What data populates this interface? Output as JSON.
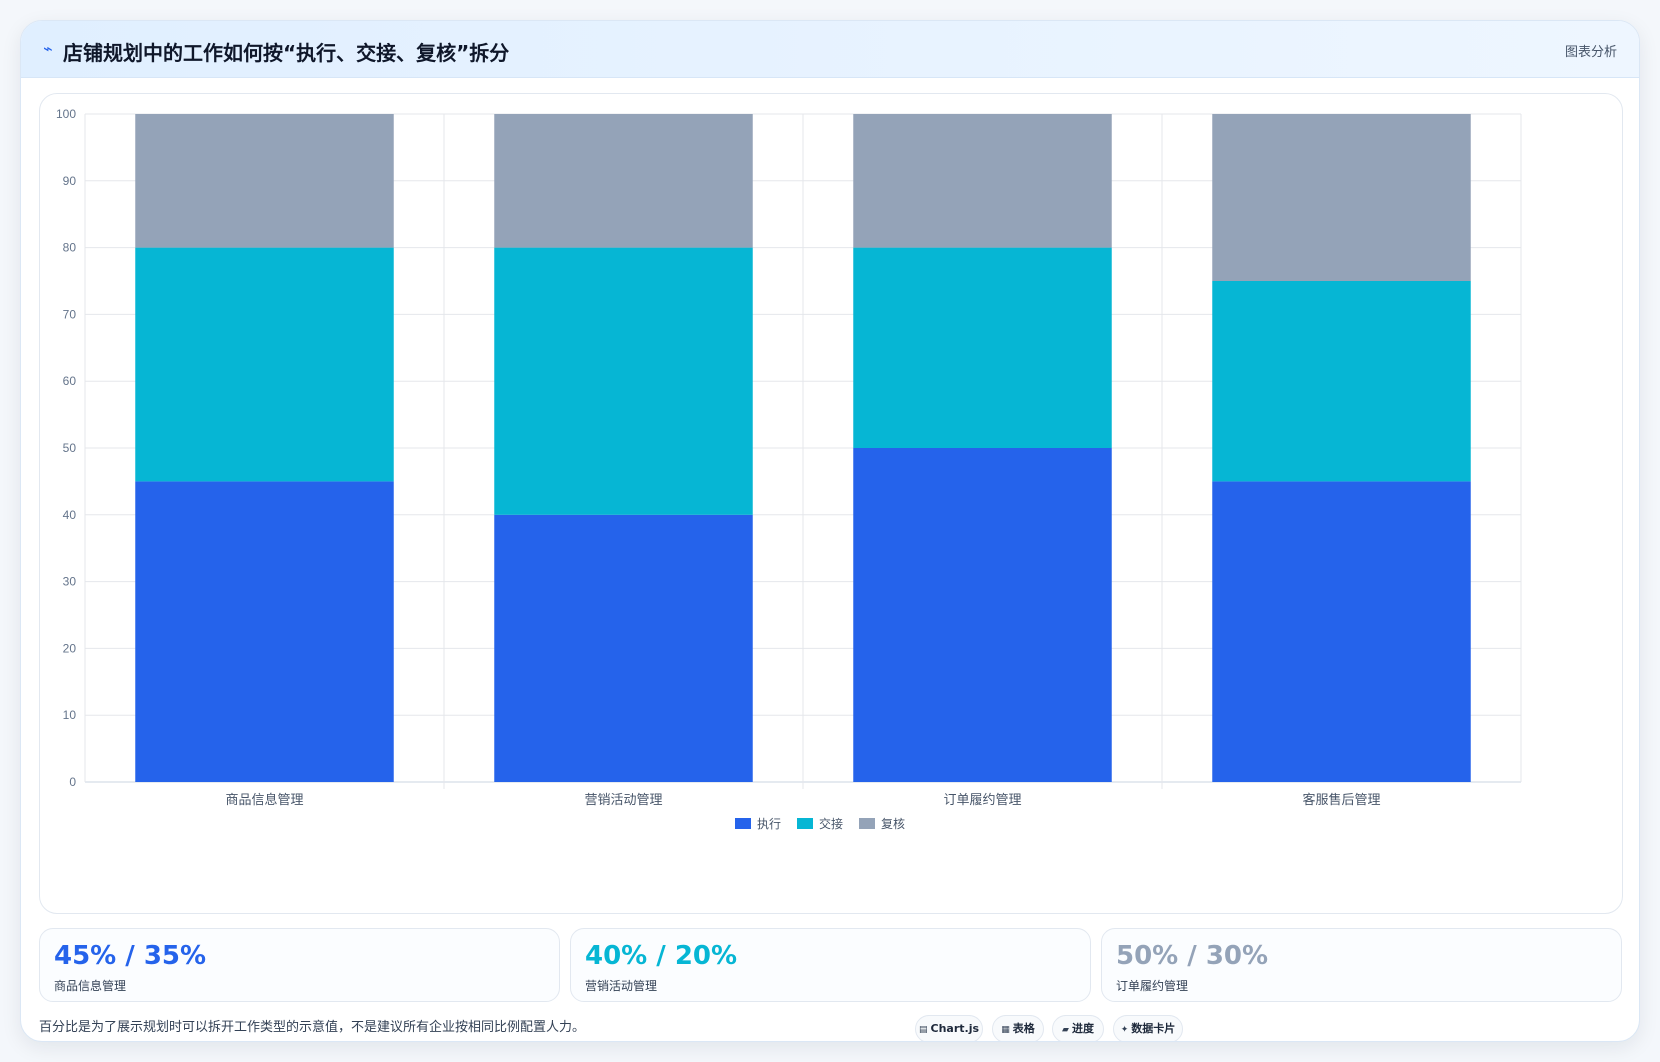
{
  "header": {
    "icon": "chart-line-icon",
    "title": "店铺规划中的工作如何按“执行、交接、复核”拆分",
    "right_label": "图表分析"
  },
  "colors": {
    "exec": "#2563eb",
    "handoff": "#06b6d4",
    "review": "#94a3b8"
  },
  "chart_data": {
    "type": "bar",
    "stacked": true,
    "categories": [
      "商品信息管理",
      "营销活动管理",
      "订单履约管理",
      "客服售后管理"
    ],
    "series": [
      {
        "name": "执行",
        "values": [
          45,
          40,
          50,
          45
        ],
        "color": "#2563eb"
      },
      {
        "name": "交接",
        "values": [
          35,
          40,
          30,
          30
        ],
        "color": "#06b6d4"
      },
      {
        "name": "复核",
        "values": [
          20,
          20,
          20,
          25
        ],
        "color": "#94a3b8"
      }
    ],
    "ylim": [
      0,
      100
    ],
    "yticks": [
      0,
      10,
      20,
      30,
      40,
      50,
      60,
      70,
      80,
      90,
      100
    ],
    "grid": true,
    "legend_position": "bottom-center"
  },
  "stats": [
    {
      "value": "45% / 35%",
      "label": "商品信息管理",
      "color": "#2563eb"
    },
    {
      "value": "40% / 20%",
      "label": "营销活动管理",
      "color": "#06b6d4"
    },
    {
      "value": "50% / 30%",
      "label": "订单履约管理",
      "color": "#94a3b8"
    }
  ],
  "footnote": "百分比是为了展示规划时可以拆开工作类型的示意值，不是建议所有企业按相同比例配置人力。",
  "tags": [
    {
      "icon": "chart-icon",
      "glyph": "▤",
      "label": "Chart.js"
    },
    {
      "icon": "table-icon",
      "glyph": "▦",
      "label": "表格"
    },
    {
      "icon": "progress-icon",
      "glyph": "▰",
      "label": "进度"
    },
    {
      "icon": "sparkle-icon",
      "glyph": "✦",
      "label": "数据卡片"
    }
  ]
}
